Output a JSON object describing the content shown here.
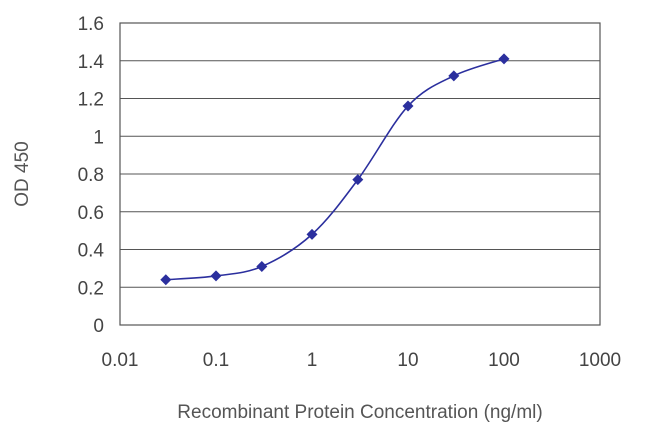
{
  "chart_data": {
    "type": "scatter",
    "title": "",
    "xlabel": "Recombinant Protein Concentration (ng/ml)",
    "ylabel": "OD 450",
    "x_scale": "log",
    "xlim": [
      0.01,
      1000
    ],
    "ylim": [
      0,
      1.6
    ],
    "x_ticks": [
      0.01,
      0.1,
      1,
      10,
      100,
      1000
    ],
    "x_tick_labels": [
      "0.01",
      "0.1",
      "1",
      "10",
      "100",
      "1000"
    ],
    "y_ticks": [
      0,
      0.2,
      0.4,
      0.6,
      0.8,
      1,
      1.2,
      1.4,
      1.6
    ],
    "y_tick_labels": [
      "0",
      "0.2",
      "0.4",
      "0.6",
      "0.8",
      "1",
      "1.2",
      "1.4",
      "1.6"
    ],
    "grid": "horizontal",
    "legend": "none",
    "series": [
      {
        "color": "#2b2f9e",
        "line": "smooth",
        "x": [
          0.03,
          0.1,
          0.3,
          1,
          3,
          10,
          30,
          100
        ],
        "y": [
          0.24,
          0.26,
          0.31,
          0.48,
          0.77,
          1.16,
          1.32,
          1.41
        ]
      }
    ]
  }
}
